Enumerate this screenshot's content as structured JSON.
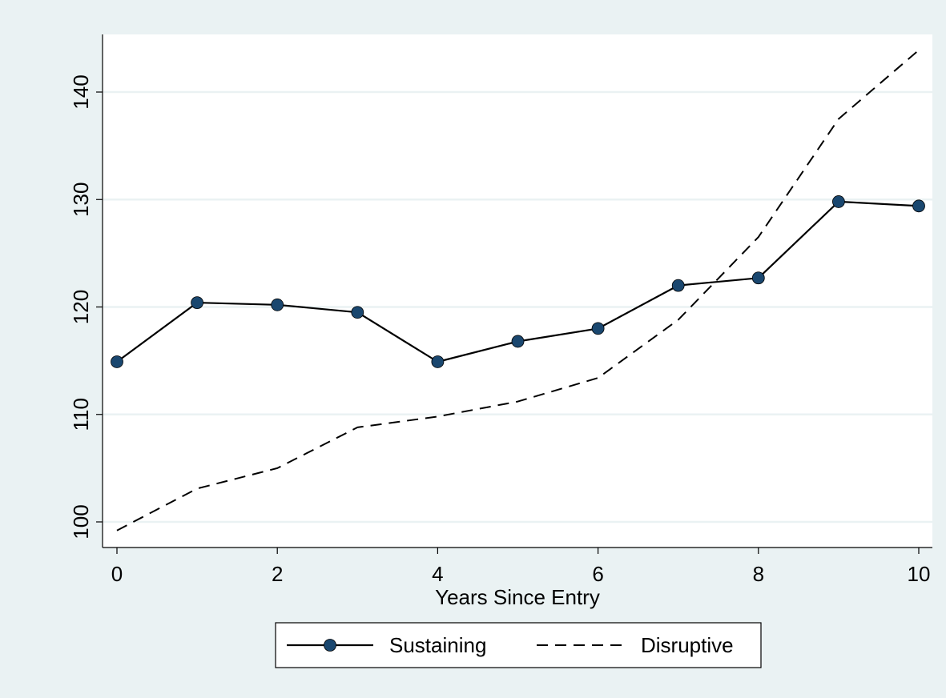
{
  "chart_data": {
    "type": "line",
    "title": "",
    "xlabel": "Years Since Entry",
    "ylabel": "",
    "xlim": [
      0,
      10
    ],
    "ylim": [
      98,
      146
    ],
    "x_ticks": [
      0,
      2,
      4,
      6,
      8,
      10
    ],
    "y_ticks": [
      100,
      110,
      120,
      130,
      140
    ],
    "grid": "horizontal",
    "legend_placement": "bottom-center",
    "colors": {
      "background": "#eaf2f3",
      "plot_background": "#ffffff",
      "sustaining": "#1a476f",
      "line": "#000000"
    },
    "series": [
      {
        "name": "Sustaining",
        "style": "solid-with-markers",
        "x": [
          0,
          1,
          2,
          3,
          4,
          5,
          6,
          7,
          8,
          9,
          10
        ],
        "values": [
          114.9,
          120.4,
          120.2,
          119.5,
          114.9,
          116.8,
          118.0,
          122.0,
          122.7,
          129.8,
          129.4
        ]
      },
      {
        "name": "Disruptive",
        "style": "dashed",
        "x": [
          0,
          1,
          2,
          3,
          4,
          5,
          6,
          7,
          8,
          9,
          10
        ],
        "values": [
          99.2,
          103.1,
          105.0,
          108.8,
          109.8,
          111.2,
          113.4,
          118.8,
          126.5,
          137.5,
          143.9
        ]
      }
    ]
  }
}
